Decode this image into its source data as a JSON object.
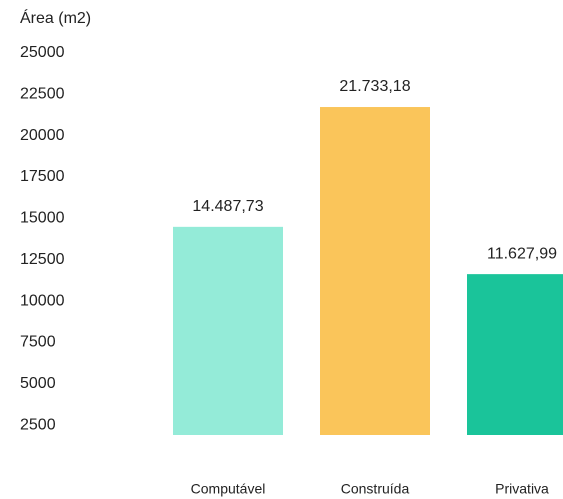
{
  "chart_data": {
    "type": "bar",
    "y_axis_label": "Área (m2)",
    "categories": [
      "Computável",
      "Construída",
      "Privativa"
    ],
    "values": [
      14487.73,
      21733.18,
      11627.99
    ],
    "value_labels": [
      "14.487,73",
      "21.733,18",
      "11.627,99"
    ],
    "colors": [
      "#94ebd8",
      "#fac55a",
      "#1ac49a"
    ],
    "ylim": [
      1900,
      25000
    ],
    "yticks": [
      2500,
      5000,
      7500,
      10000,
      12500,
      15000,
      17500,
      20000,
      22500,
      25000
    ],
    "grid": false
  }
}
